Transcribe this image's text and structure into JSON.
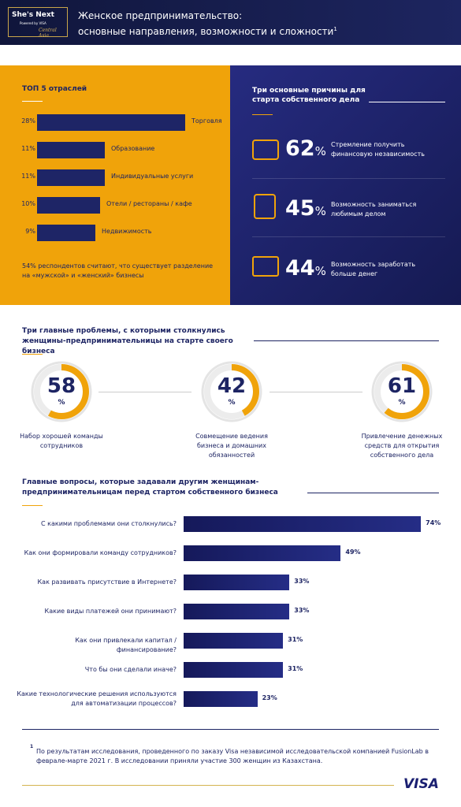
{
  "header": {
    "logo": "She's Next",
    "logo_sub": "Powered by VISA",
    "logo_region": "Central Asia",
    "title_lines": [
      "Женское предпринимательство:",
      "основные направления, возможности и сложности"
    ],
    "footnote_mark": "1"
  },
  "industries": {
    "title": "ТОП 5 отраслей",
    "categories": [
      "Торговля",
      "Образование",
      "Индивидуальные услуги",
      "Отели / рестораны / кафе",
      "Недвижимость"
    ],
    "values": [
      28,
      11,
      11,
      10,
      9
    ],
    "value_labels": [
      "28%",
      "11%",
      "11%",
      "10%",
      "9%"
    ],
    "note": "54% респондентов считают, что существует разделение на «мужской» и «женский» бизнесы"
  },
  "reasons": {
    "title": "Три основные причины для старта собственного дела",
    "values": [
      62,
      45,
      44
    ],
    "unit": "%",
    "labels": [
      "Стремление получить финансовую независимость",
      "Возможность заниматься любимым делом",
      "Возможность заработать больше денег"
    ]
  },
  "problems": {
    "title": "Три главные проблемы, с которыми столкнулись женщины-предпринимательницы на старте своего бизнеса",
    "values": [
      58,
      42,
      61
    ],
    "unit": "%",
    "labels": [
      "Набор хорошей команды сотрудников",
      "Совмещение ведения бизнеса и домашних обязанностей",
      "Привлечение денежных средств для открытия собственного дела"
    ]
  },
  "questions": {
    "title": "Главные вопросы, которые задавали другим женщинам-предпринимательницам перед стартом собственного бизнеса",
    "categories": [
      "С какими проблемами они столкнулись?",
      "Как они формировали команду сотрудников?",
      "Как развивать присутствие в Интернете?",
      "Какие виды платежей они принимают?",
      "Как они привлекали капитал / финансирование?",
      "Что бы они сделали иначе?",
      "Какие технологические решения используются для автоматизации процессов?"
    ],
    "values": [
      74,
      49,
      33,
      33,
      31,
      31,
      23
    ],
    "value_labels": [
      "74%",
      "49%",
      "33%",
      "33%",
      "31%",
      "31%",
      "23%"
    ]
  },
  "footnote": {
    "mark": "1",
    "text": "По результатам исследования, проведенного по заказу Visa независимой исследовательской компанией FusionLab в феврале-марте 2021 г. В исследовании приняли участие 300 женщин из Казахстана."
  },
  "footer_logo": "VISA"
}
